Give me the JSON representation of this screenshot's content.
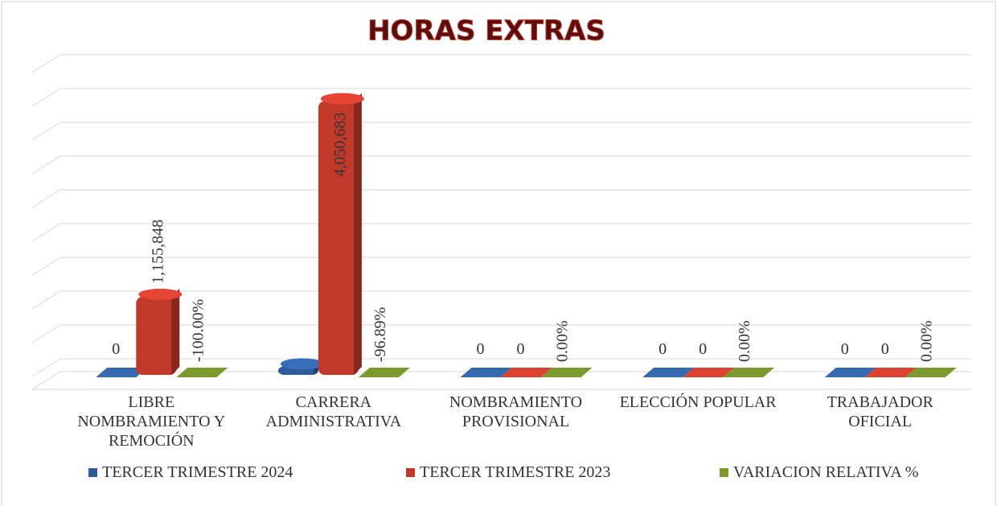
{
  "chart_data": {
    "type": "bar3d",
    "title": "HORAS EXTRAS",
    "categories": [
      "LIBRE NOMBRAMIENTO Y REMOCIÓN",
      "CARRERA ADMINISTRATIVA",
      "NOMBRAMIENTO PROVISIONAL",
      "ELECCIÓN POPULAR",
      "TRABAJADOR OFICIAL"
    ],
    "series": [
      {
        "name": "TERCER TRIMESTRE 2024",
        "color": "#2e5c9a",
        "values": [
          0,
          126000,
          0,
          0,
          0
        ],
        "value_labels": [
          "0",
          null,
          "0",
          "0",
          "0"
        ]
      },
      {
        "name": "TERCER TRIMESTRE 2023",
        "color": "#c0392b",
        "values": [
          1155848,
          4050683,
          0,
          0,
          0
        ],
        "value_labels": [
          "1,155,848",
          "4,050,683",
          "0",
          "0",
          "0"
        ]
      },
      {
        "name": "VARIACION RELATIVA %",
        "color": "#7a9a2e",
        "values": [
          -100,
          -96.89,
          0,
          0,
          0
        ],
        "value_labels": [
          "-100.00%",
          "-96.89%",
          "0.00%",
          "0.00%",
          "0.00%"
        ]
      }
    ],
    "ylim": [
      0,
      4500000
    ],
    "yticks": [
      0,
      500000,
      1000000,
      1500000,
      2000000,
      2500000,
      3000000,
      3500000,
      4000000,
      4500000
    ],
    "grid": true
  }
}
